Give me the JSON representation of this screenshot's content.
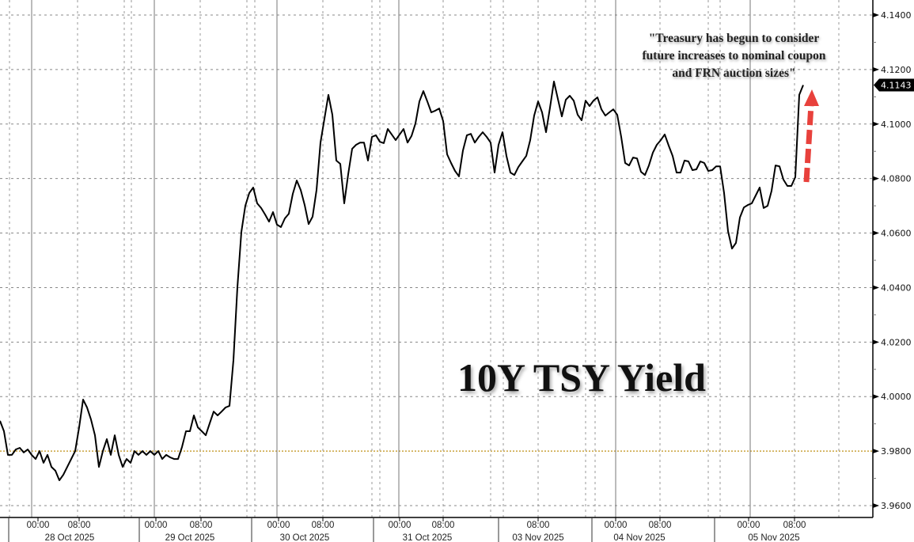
{
  "chart_data": {
    "type": "line",
    "title": "10Y TSY Yield",
    "annotation": "\"Treasury has begun to consider future increases to nominal coupon and FRN auction sizes\"",
    "last_value_label": "4.1143",
    "reference_line": 3.98,
    "ylim": [
      3.955,
      4.15
    ],
    "y_ticks": [
      "4.1400",
      "4.1200",
      "4.1000",
      "4.0800",
      "4.0600",
      "4.0400",
      "4.0200",
      "4.0000",
      "3.9800",
      "3.9600"
    ],
    "x_time_ticks": [
      "00:00",
      "08:00",
      "00:00",
      "08:00",
      "00:00",
      "08:00",
      "00:00",
      "08:00",
      "08:00",
      "00:00",
      "08:00",
      "00:00",
      "08:00"
    ],
    "x_date_labels": [
      "28 Oct 2025",
      "29 Oct 2025",
      "30 Oct 2025",
      "31 Oct 2025",
      "03 Nov 2025",
      "04 Nov 2025",
      "05 Nov 2025"
    ],
    "grid": true,
    "colors": {
      "line": "#000000",
      "reference_line": "#c9a23c",
      "arrow": "#e8413c",
      "badge": "#000000"
    },
    "values": [
      3.9911,
      3.9873,
      3.9786,
      3.9786,
      3.9806,
      3.9812,
      3.9795,
      3.9806,
      3.9786,
      3.9771,
      3.98,
      3.9757,
      3.9786,
      3.9742,
      3.9728,
      3.9693,
      3.9713,
      3.9742,
      3.9771,
      3.98,
      3.9887,
      3.9989,
      3.996,
      3.9916,
      3.9858,
      3.9742,
      3.98,
      3.9844,
      3.9786,
      3.9858,
      3.9786,
      3.9742,
      3.9771,
      3.9757,
      3.98,
      3.9786,
      3.98,
      3.9786,
      3.98,
      3.9786,
      3.98,
      3.9771,
      3.9786,
      3.9777,
      3.9771,
      3.9771,
      3.9815,
      3.9873,
      3.9873,
      3.9931,
      3.9887,
      3.9873,
      3.9858,
      3.9902,
      3.9945,
      3.9931,
      3.9945,
      3.996,
      3.9966,
      4.0134,
      4.0401,
      4.0604,
      4.07,
      4.0747,
      4.0767,
      4.0709,
      4.0692,
      4.0668,
      4.0642,
      4.0677,
      4.0631,
      4.0622,
      4.0654,
      4.0671,
      4.0744,
      4.0793,
      4.0758,
      4.0703,
      4.0633,
      4.066,
      4.0758,
      4.0932,
      4.102,
      4.1107,
      4.1034,
      4.0866,
      4.0854,
      4.0709,
      4.0816,
      4.0909,
      4.0924,
      4.0932,
      4.0932,
      4.0866,
      4.0953,
      4.0959,
      4.0935,
      4.093,
      4.0982,
      4.0962,
      4.0941,
      4.0962,
      4.0982,
      4.0932,
      4.0956,
      4.1002,
      4.1083,
      4.1121,
      4.1083,
      4.1043,
      4.1049,
      4.1057,
      4.1011,
      4.0889,
      4.0857,
      4.0828,
      4.0808,
      4.0903,
      4.0959,
      4.0964,
      4.0932,
      4.0953,
      4.097,
      4.0953,
      4.0932,
      4.0822,
      4.0924,
      4.097,
      4.0883,
      4.0822,
      4.0813,
      4.0842,
      4.0863,
      4.0883,
      4.0941,
      4.1031,
      4.1083,
      4.1043,
      4.097,
      4.106,
      4.1156,
      4.1092,
      4.1028,
      4.1089,
      4.1104,
      4.1086,
      4.1034,
      4.1014,
      4.1086,
      4.1066,
      4.1086,
      4.1098,
      4.1054,
      4.1031,
      4.1043,
      4.1054,
      4.1034,
      4.0953,
      4.0857,
      4.0848,
      4.0877,
      4.0874,
      4.0825,
      4.0813,
      4.0848,
      4.0895,
      4.0924,
      4.0941,
      4.0962,
      4.0921,
      4.0883,
      4.0822,
      4.0822,
      4.0866,
      4.0863,
      4.0831,
      4.0834,
      4.0863,
      4.0857,
      4.0828,
      4.0831,
      4.0845,
      4.0845,
      4.0747,
      4.0607,
      4.0543,
      4.0564,
      4.0657,
      4.0694,
      4.0703,
      4.0709,
      4.0738,
      4.0767,
      4.0692,
      4.07,
      4.0755,
      4.0848,
      4.0845,
      4.0796,
      4.0773,
      4.0773,
      4.0805,
      4.1107,
      4.1143
    ]
  }
}
